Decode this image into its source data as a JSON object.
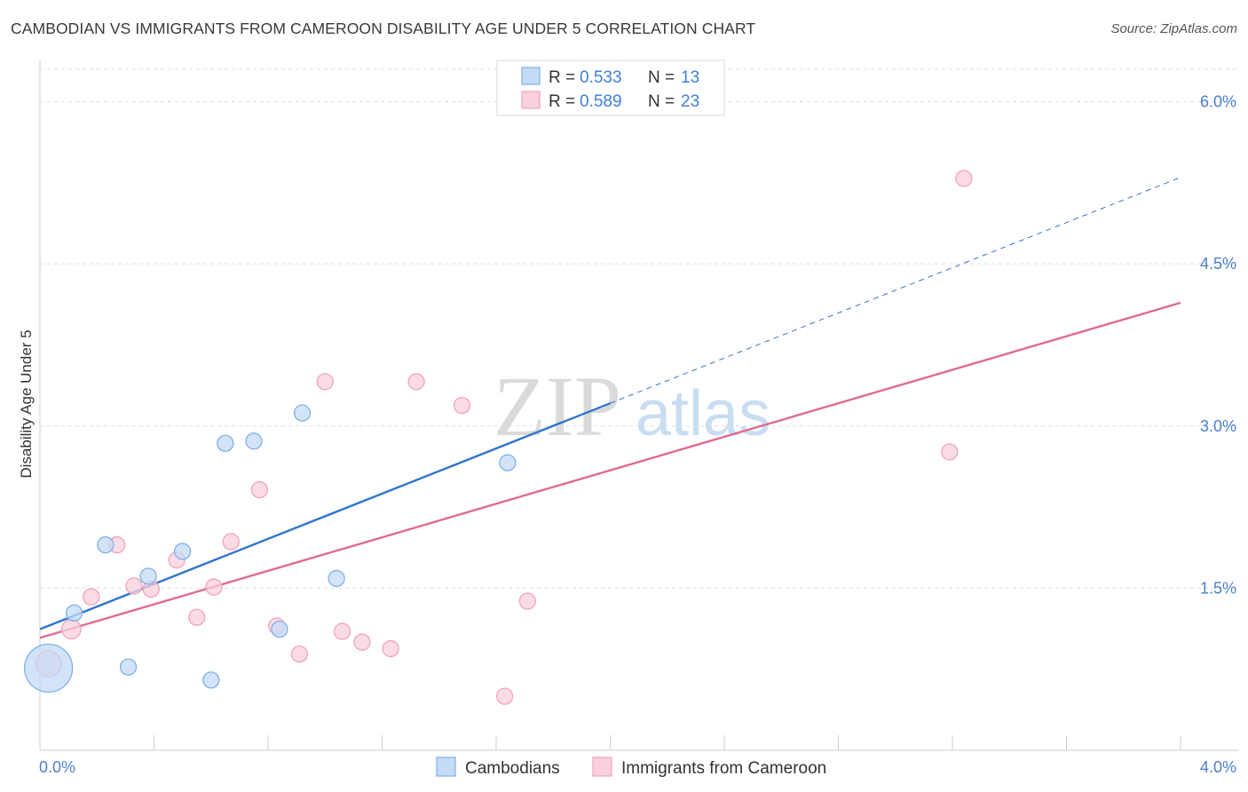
{
  "chart_data": {
    "type": "scatter",
    "title": "CAMBODIAN VS IMMIGRANTS FROM CAMEROON DISABILITY AGE UNDER 5 CORRELATION CHART",
    "source": "Source: ZipAtlas.com",
    "xlabel": "",
    "ylabel": "Disability Age Under 5",
    "xlim": [
      0,
      4.0
    ],
    "ylim": [
      0,
      6.3
    ],
    "x_tick_labels": [
      "0.0%",
      "4.0%"
    ],
    "y_ticks": [
      {
        "value": 1.5,
        "label": "1.5%"
      },
      {
        "value": 3.0,
        "label": "3.0%"
      },
      {
        "value": 4.5,
        "label": "4.5%"
      },
      {
        "value": 6.0,
        "label": "6.0%"
      }
    ],
    "grid": true,
    "watermark": {
      "zip": "ZIP",
      "atlas": "atlas"
    },
    "legend_top": {
      "r_label": "R =",
      "n_label": "N =",
      "entries": [
        {
          "series": "Cambodians",
          "r": "0.533",
          "n": "13"
        },
        {
          "series": "Immigrants from Cameroon",
          "r": "0.589",
          "n": "23"
        }
      ]
    },
    "series": [
      {
        "name": "Cambodians",
        "color": "#7eb0ea",
        "fill": "#c4dbf6",
        "line_color": "#2f74d0",
        "trend": {
          "x0": 0.0,
          "y0": 1.12,
          "x1": 4.0,
          "y1": 5.3,
          "solid_until_x": 2.0
        },
        "points": [
          {
            "x": 0.03,
            "y": 0.76,
            "size": 30
          },
          {
            "x": 0.12,
            "y": 1.27,
            "size": 10
          },
          {
            "x": 0.23,
            "y": 1.9,
            "size": 10
          },
          {
            "x": 0.31,
            "y": 0.77,
            "size": 10
          },
          {
            "x": 0.38,
            "y": 1.61,
            "size": 10
          },
          {
            "x": 0.5,
            "y": 1.84,
            "size": 10
          },
          {
            "x": 0.6,
            "y": 0.65,
            "size": 10
          },
          {
            "x": 0.65,
            "y": 2.84,
            "size": 10
          },
          {
            "x": 0.75,
            "y": 2.86,
            "size": 10
          },
          {
            "x": 0.84,
            "y": 1.12,
            "size": 10
          },
          {
            "x": 0.92,
            "y": 3.12,
            "size": 10
          },
          {
            "x": 1.04,
            "y": 1.59,
            "size": 10
          },
          {
            "x": 1.64,
            "y": 2.66,
            "size": 10
          }
        ]
      },
      {
        "name": "Immigrants from Cameroon",
        "color": "#f0a3bb",
        "fill": "#f9d0dc",
        "line_color": "#e06b92",
        "trend": {
          "x0": 0.0,
          "y0": 1.04,
          "x1": 4.0,
          "y1": 4.14,
          "solid_until_x": 4.0
        },
        "points": [
          {
            "x": 0.03,
            "y": 0.8,
            "size": 16
          },
          {
            "x": 0.11,
            "y": 1.12,
            "size": 12
          },
          {
            "x": 0.18,
            "y": 1.42,
            "size": 10
          },
          {
            "x": 0.27,
            "y": 1.9,
            "size": 10
          },
          {
            "x": 0.33,
            "y": 1.52,
            "size": 10
          },
          {
            "x": 0.39,
            "y": 1.49,
            "size": 10
          },
          {
            "x": 0.48,
            "y": 1.76,
            "size": 10
          },
          {
            "x": 0.55,
            "y": 1.23,
            "size": 10
          },
          {
            "x": 0.61,
            "y": 1.51,
            "size": 10
          },
          {
            "x": 0.67,
            "y": 1.93,
            "size": 10
          },
          {
            "x": 0.77,
            "y": 2.41,
            "size": 10
          },
          {
            "x": 0.83,
            "y": 1.15,
            "size": 10
          },
          {
            "x": 0.91,
            "y": 0.89,
            "size": 10
          },
          {
            "x": 1.0,
            "y": 3.41,
            "size": 10
          },
          {
            "x": 1.06,
            "y": 1.1,
            "size": 10
          },
          {
            "x": 1.13,
            "y": 1.0,
            "size": 10
          },
          {
            "x": 1.23,
            "y": 0.94,
            "size": 10
          },
          {
            "x": 1.32,
            "y": 3.41,
            "size": 10
          },
          {
            "x": 1.48,
            "y": 3.19,
            "size": 10
          },
          {
            "x": 1.63,
            "y": 0.5,
            "size": 10
          },
          {
            "x": 1.71,
            "y": 1.38,
            "size": 10
          },
          {
            "x": 3.19,
            "y": 2.76,
            "size": 10
          },
          {
            "x": 3.24,
            "y": 5.29,
            "size": 10
          }
        ]
      }
    ]
  }
}
